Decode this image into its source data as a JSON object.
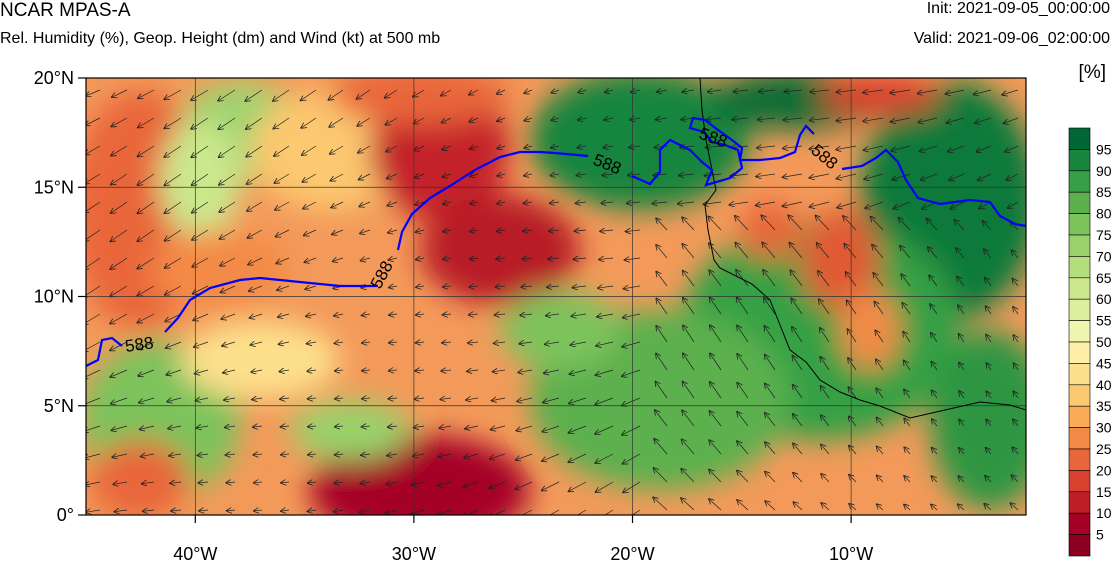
{
  "header": {
    "title": "NCAR MPAS-A",
    "subtitle": "Rel. Humidity (%), Geop. Height (dm) and Wind (kt) at 500 mb",
    "init": "Init: 2021-09-05_00:00:00",
    "valid": "Valid: 2021-09-06_02:00:00"
  },
  "map": {
    "lon_range": [
      -45,
      -2
    ],
    "lat_range": [
      0,
      20
    ],
    "lat_ticks": [
      {
        "value": 20,
        "label": "20°N"
      },
      {
        "value": 15,
        "label": "15°N"
      },
      {
        "value": 10,
        "label": "10°N"
      },
      {
        "value": 5,
        "label": "5°N"
      },
      {
        "value": 0,
        "label": "0°"
      }
    ],
    "lon_ticks": [
      {
        "value": -40,
        "label": "40°W"
      },
      {
        "value": -30,
        "label": "30°W"
      },
      {
        "value": -20,
        "label": "20°W"
      },
      {
        "value": -10,
        "label": "10°W"
      }
    ],
    "contour_value": "588",
    "contour_color": "#0000ff"
  },
  "colorbar": {
    "unit": "[%]",
    "labels": [
      "95",
      "90",
      "85",
      "80",
      "75",
      "70",
      "65",
      "60",
      "55",
      "50",
      "45",
      "40",
      "35",
      "30",
      "25",
      "20",
      "15",
      "10",
      "5"
    ],
    "colors": [
      "#006837",
      "#17853e",
      "#35a045",
      "#5cb04d",
      "#7dc35b",
      "#99d16b",
      "#b3de7c",
      "#cbe88c",
      "#dcef9e",
      "#eef6b0",
      "#fff0a8",
      "#fde08b",
      "#fcc870",
      "#f9ab58",
      "#f48a47",
      "#e9663a",
      "#d9412e",
      "#bf1f28",
      "#a50026",
      "#8b0020"
    ]
  }
}
